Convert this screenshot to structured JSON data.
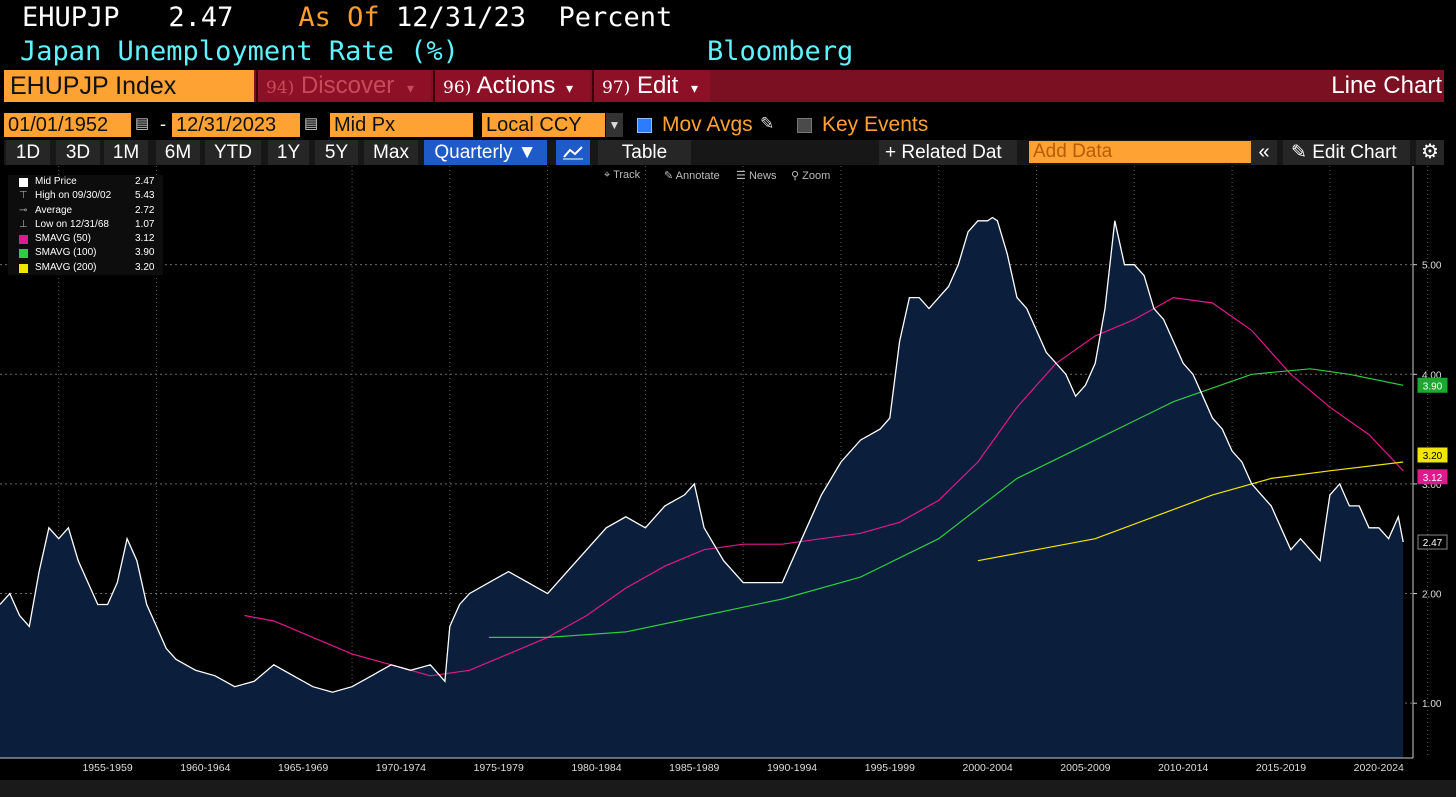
{
  "header": {
    "ticker": "EHUPJP",
    "last": "2.47",
    "as_of_label": "As Of",
    "as_of_date": "12/31/23",
    "units": "Percent",
    "description": "Japan Unemployment Rate (%)",
    "source": "Bloomberg"
  },
  "menubar": {
    "security": "EHUPJP Index",
    "discover_num": "94)",
    "discover": "Discover",
    "actions_num": "96)",
    "actions": "Actions",
    "edit_num": "97)",
    "edit": "Edit",
    "chart_type": "Line Chart",
    "dropdown_glyph": "▾"
  },
  "controls": {
    "start_date": "01/01/1952",
    "date_sep": "-",
    "end_date": "12/31/2023",
    "price_field": "Mid Px",
    "currency": "Local CCY",
    "mov_avgs": "Mov Avgs",
    "key_events": "Key Events"
  },
  "range_buttons": [
    "1D",
    "3D",
    "1M",
    "6M",
    "YTD",
    "1Y",
    "5Y",
    "Max"
  ],
  "periodicity": "Quarterly ▼",
  "table_label": "Table",
  "related_data": "+ Related Dat",
  "add_data_placeholder": "Add Data",
  "edit_chart": "Edit Chart",
  "toolbar": {
    "track": "Track",
    "annotate": "Annotate",
    "news": "News",
    "zoom": "Zoom"
  },
  "legend": [
    {
      "label": "Mid Price",
      "value": "2.47",
      "color": "#ffffff",
      "symbol": "square"
    },
    {
      "label": "High on 09/30/02",
      "value": "5.43",
      "color": "#aaaaaa",
      "symbol": "high"
    },
    {
      "label": "Average",
      "value": "2.72",
      "color": "#aaaaaa",
      "symbol": "avg"
    },
    {
      "label": "Low on 12/31/68",
      "value": "1.07",
      "color": "#aaaaaa",
      "symbol": "low"
    },
    {
      "label": "SMAVG (50)",
      "value": "3.12",
      "color": "#e0198c",
      "symbol": "square"
    },
    {
      "label": "SMAVG (100)",
      "value": "3.90",
      "color": "#2ecc40",
      "symbol": "square"
    },
    {
      "label": "SMAVG (200)",
      "value": "3.20",
      "color": "#f2e600",
      "symbol": "square"
    }
  ],
  "chart_data": {
    "type": "line",
    "y_ticks": [
      "1.00",
      "2.00",
      "3.00",
      "4.00",
      "5.00"
    ],
    "y_range": [
      0.5,
      5.9
    ],
    "x_range": [
      1952.0,
      2024.25
    ],
    "x_labels": [
      "1955-1959",
      "1960-1964",
      "1965-1969",
      "1970-1974",
      "1975-1979",
      "1980-1984",
      "1985-1989",
      "1990-1994",
      "1995-1999",
      "2000-2004",
      "2005-2009",
      "2010-2014",
      "2015-2019",
      "2020-2024"
    ],
    "x_label_centers": [
      1957.5,
      1962.5,
      1967.5,
      1972.5,
      1977.5,
      1982.5,
      1987.5,
      1992.5,
      1997.5,
      2002.5,
      2007.5,
      2012.5,
      2017.5,
      2022.5
    ],
    "area_color": "#0b1e3c",
    "line_color": "#ffffff",
    "series": [
      {
        "name": "Mid Price",
        "color": "#ffffff",
        "x": [
          1952.0,
          1952.5,
          1953.0,
          1953.5,
          1954.0,
          1954.5,
          1955.0,
          1955.5,
          1956.0,
          1956.5,
          1957.0,
          1957.5,
          1958.0,
          1958.5,
          1959.0,
          1959.5,
          1960.0,
          1960.5,
          1961.0,
          1962.0,
          1963.0,
          1964.0,
          1965.0,
          1966.0,
          1967.0,
          1968.0,
          1969.0,
          1970.0,
          1971.0,
          1972.0,
          1973.0,
          1974.0,
          1974.75,
          1975.0,
          1975.5,
          1976.0,
          1977.0,
          1978.0,
          1979.0,
          1980.0,
          1981.0,
          1982.0,
          1983.0,
          1984.0,
          1985.0,
          1986.0,
          1987.0,
          1987.5,
          1988.0,
          1989.0,
          1990.0,
          1991.0,
          1992.0,
          1993.0,
          1994.0,
          1995.0,
          1996.0,
          1997.0,
          1997.5,
          1998.0,
          1998.5,
          1999.0,
          1999.5,
          2000.0,
          2000.5,
          2001.0,
          2001.5,
          2002.0,
          2002.5,
          2002.75,
          2003.0,
          2003.5,
          2004.0,
          2004.5,
          2005.0,
          2005.5,
          2006.0,
          2006.5,
          2007.0,
          2007.5,
          2008.0,
          2008.5,
          2009.0,
          2009.5,
          2010.0,
          2010.5,
          2011.0,
          2011.5,
          2012.0,
          2012.5,
          2013.0,
          2013.5,
          2014.0,
          2014.5,
          2015.0,
          2015.5,
          2016.0,
          2016.5,
          2017.0,
          2017.5,
          2018.0,
          2018.5,
          2019.0,
          2019.5,
          2020.0,
          2020.5,
          2021.0,
          2021.5,
          2022.0,
          2022.5,
          2023.0,
          2023.5,
          2023.75
        ],
        "y": [
          1.9,
          2.0,
          1.8,
          1.7,
          2.2,
          2.6,
          2.5,
          2.6,
          2.3,
          2.1,
          1.9,
          1.9,
          2.1,
          2.5,
          2.3,
          1.9,
          1.7,
          1.5,
          1.4,
          1.3,
          1.25,
          1.15,
          1.2,
          1.35,
          1.25,
          1.15,
          1.1,
          1.15,
          1.25,
          1.35,
          1.3,
          1.35,
          1.2,
          1.7,
          1.9,
          2.0,
          2.1,
          2.2,
          2.1,
          2.0,
          2.2,
          2.4,
          2.6,
          2.7,
          2.6,
          2.8,
          2.9,
          3.0,
          2.6,
          2.3,
          2.1,
          2.1,
          2.1,
          2.5,
          2.9,
          3.2,
          3.4,
          3.5,
          3.6,
          4.3,
          4.7,
          4.7,
          4.6,
          4.7,
          4.8,
          5.0,
          5.3,
          5.4,
          5.4,
          5.43,
          5.4,
          5.1,
          4.7,
          4.6,
          4.4,
          4.2,
          4.1,
          4.0,
          3.8,
          3.9,
          4.1,
          4.6,
          5.4,
          5.0,
          5.0,
          4.9,
          4.6,
          4.5,
          4.3,
          4.1,
          4.0,
          3.8,
          3.6,
          3.5,
          3.3,
          3.2,
          3.0,
          2.9,
          2.8,
          2.6,
          2.4,
          2.5,
          2.4,
          2.3,
          2.9,
          3.0,
          2.8,
          2.8,
          2.6,
          2.6,
          2.5,
          2.7,
          2.47
        ]
      },
      {
        "name": "SMAVG (50)",
        "color": "#e0198c",
        "x": [
          1964.5,
          1966.0,
          1968.0,
          1970.0,
          1972.0,
          1974.0,
          1976.0,
          1978.0,
          1980.0,
          1982.0,
          1984.0,
          1986.0,
          1988.0,
          1990.0,
          1992.0,
          1994.0,
          1996.0,
          1998.0,
          2000.0,
          2002.0,
          2004.0,
          2006.0,
          2008.0,
          2010.0,
          2012.0,
          2014.0,
          2016.0,
          2018.0,
          2020.0,
          2022.0,
          2023.75
        ],
        "y": [
          1.8,
          1.75,
          1.6,
          1.45,
          1.35,
          1.25,
          1.3,
          1.45,
          1.6,
          1.8,
          2.05,
          2.25,
          2.4,
          2.45,
          2.45,
          2.5,
          2.55,
          2.65,
          2.85,
          3.2,
          3.7,
          4.1,
          4.35,
          4.5,
          4.7,
          4.65,
          4.4,
          4.0,
          3.7,
          3.45,
          3.12
        ]
      },
      {
        "name": "SMAVG (100)",
        "color": "#2ecc40",
        "x": [
          1977.0,
          1980.0,
          1984.0,
          1988.0,
          1992.0,
          1996.0,
          2000.0,
          2004.0,
          2008.0,
          2012.0,
          2016.0,
          2019.0,
          2021.0,
          2023.75
        ],
        "y": [
          1.6,
          1.6,
          1.65,
          1.8,
          1.95,
          2.15,
          2.5,
          3.05,
          3.4,
          3.75,
          4.0,
          4.05,
          4.0,
          3.9
        ]
      },
      {
        "name": "SMAVG (200)",
        "color": "#f2e600",
        "x": [
          2002.0,
          2005.0,
          2008.0,
          2011.0,
          2014.0,
          2017.0,
          2020.0,
          2023.75
        ],
        "y": [
          2.3,
          2.4,
          2.5,
          2.7,
          2.9,
          3.05,
          3.12,
          3.2
        ]
      }
    ],
    "value_tags": [
      {
        "value": "3.90",
        "y": 3.9,
        "bg": "#1fa82f",
        "fg": "#ffffff"
      },
      {
        "value": "3.20",
        "y": 3.2,
        "bg": "#f2e600",
        "fg": "#000000"
      },
      {
        "value": "3.12",
        "y": 3.12,
        "bg": "#e0198c",
        "fg": "#ffffff"
      },
      {
        "value": "2.47",
        "y": 2.47,
        "bg": "#000000",
        "fg": "#ffffff"
      }
    ]
  }
}
